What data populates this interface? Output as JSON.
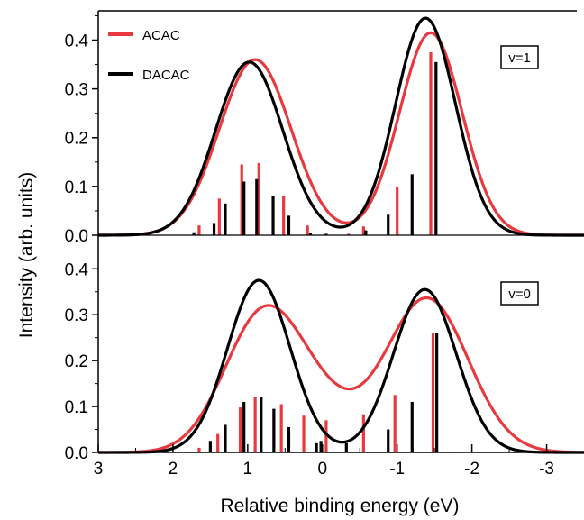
{
  "chart_data": {
    "type": "line",
    "xlabel": "Relative binding energy (eV)",
    "ylabel": "Intensity (arb. units)",
    "xlim": [
      3,
      -3.5
    ],
    "x_reversed": true,
    "x_ticks": [
      3,
      2,
      1,
      0,
      -1,
      -2,
      -3
    ],
    "x_tick_labels": [
      "3",
      "2",
      "1",
      "0",
      "-1",
      "-2",
      "-3"
    ],
    "legend": {
      "placement": "top-left",
      "entries": [
        {
          "name": "ACAC",
          "color": "#e8393f"
        },
        {
          "name": "DACAC",
          "color": "#000000"
        }
      ]
    },
    "panels": [
      {
        "label": "v=1",
        "ylim": [
          0,
          0.46
        ],
        "y_ticks": [
          0.0,
          0.1,
          0.2,
          0.3,
          0.4
        ],
        "y_tick_labels": [
          "0.0",
          "0.1",
          "0.2",
          "0.3",
          "0.4"
        ],
        "series": [
          {
            "name": "ACAC",
            "color": "#e8393f",
            "curve": {
              "gaussians": [
                {
                  "center": 0.9,
                  "amp": 0.36,
                  "sigma": 0.48
                },
                {
                  "center": -1.45,
                  "amp": 0.415,
                  "sigma": 0.42
                }
              ]
            },
            "sticks": [
              [
                1.65,
                0.02
              ],
              [
                1.38,
                0.075
              ],
              [
                1.08,
                0.145
              ],
              [
                0.85,
                0.148
              ],
              [
                0.52,
                0.08
              ],
              [
                0.2,
                0.02
              ],
              [
                -0.35,
                0.003
              ],
              [
                -0.55,
                0.018
              ],
              [
                -1.0,
                0.1
              ],
              [
                -1.45,
                0.375
              ]
            ]
          },
          {
            "name": "DACAC",
            "color": "#000000",
            "curve": {
              "gaussians": [
                {
                  "center": 0.98,
                  "amp": 0.355,
                  "sigma": 0.45
                },
                {
                  "center": -1.38,
                  "amp": 0.445,
                  "sigma": 0.4
                }
              ]
            },
            "sticks": [
              [
                1.72,
                0.006
              ],
              [
                1.45,
                0.025
              ],
              [
                1.3,
                0.065
              ],
              [
                1.05,
                0.11
              ],
              [
                0.88,
                0.115
              ],
              [
                0.66,
                0.08
              ],
              [
                0.45,
                0.04
              ],
              [
                0.16,
                0.005
              ],
              [
                -0.05,
                0.003
              ],
              [
                -0.58,
                0.01
              ],
              [
                -0.88,
                0.042
              ],
              [
                -1.2,
                0.125
              ],
              [
                -1.52,
                0.355
              ]
            ]
          }
        ]
      },
      {
        "label": "v=0",
        "ylim": [
          0,
          0.43
        ],
        "y_ticks": [
          0.0,
          0.1,
          0.2,
          0.3,
          0.4
        ],
        "y_tick_labels": [
          "0.0",
          "0.1",
          "0.2",
          "0.3",
          "0.4"
        ],
        "series": [
          {
            "name": "ACAC",
            "color": "#e8393f",
            "curve": {
              "gaussians": [
                {
                  "center": 0.85,
                  "amp": 0.255,
                  "sigma": 0.5
                },
                {
                  "center": 0.2,
                  "amp": 0.115,
                  "sigma": 0.55
                },
                {
                  "center": -1.4,
                  "amp": 0.335,
                  "sigma": 0.55
                }
              ]
            },
            "sticks": [
              [
                1.65,
                0.01
              ],
              [
                1.4,
                0.04
              ],
              [
                1.1,
                0.098
              ],
              [
                0.9,
                0.12
              ],
              [
                0.55,
                0.105
              ],
              [
                0.25,
                0.08
              ],
              [
                -0.05,
                0.07
              ],
              [
                -0.55,
                0.083
              ],
              [
                -0.97,
                0.125
              ],
              [
                -1.48,
                0.26
              ]
            ]
          },
          {
            "name": "DACAC",
            "color": "#000000",
            "curve": {
              "gaussians": [
                {
                  "center": 0.85,
                  "amp": 0.375,
                  "sigma": 0.42
                },
                {
                  "center": -1.37,
                  "amp": 0.355,
                  "sigma": 0.42
                }
              ]
            },
            "sticks": [
              [
                1.5,
                0.025
              ],
              [
                1.3,
                0.06
              ],
              [
                1.05,
                0.11
              ],
              [
                0.82,
                0.12
              ],
              [
                0.65,
                0.095
              ],
              [
                0.45,
                0.055
              ],
              [
                0.08,
                0.02
              ],
              [
                0.02,
                0.025
              ],
              [
                -0.32,
                0.02
              ],
              [
                -0.88,
                0.05
              ],
              [
                -1.2,
                0.11
              ],
              [
                -1.53,
                0.26
              ]
            ]
          }
        ]
      }
    ]
  }
}
